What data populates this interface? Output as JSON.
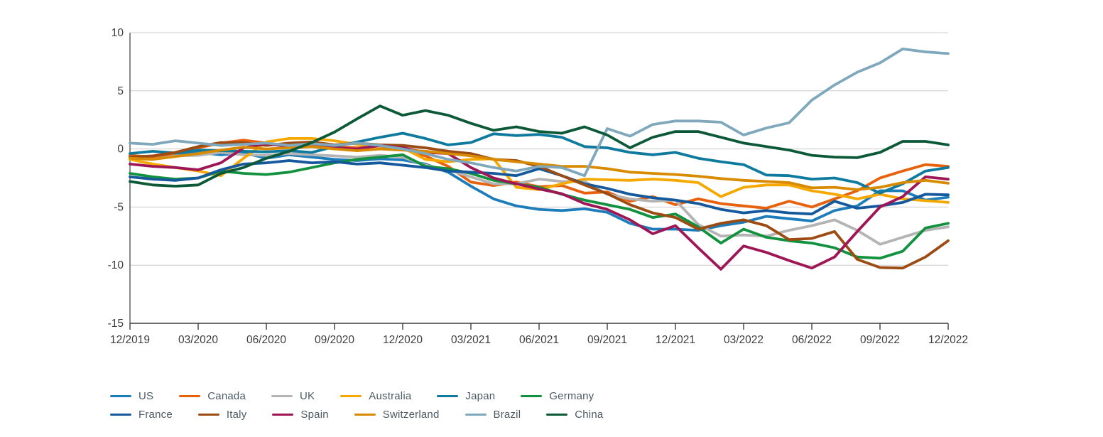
{
  "chart_data": {
    "type": "line",
    "title": "",
    "xlabel": "",
    "ylabel": "",
    "ylim": [
      -15,
      10
    ],
    "y_ticks": [
      "10",
      "5",
      "0",
      "-5",
      "-10",
      "-15"
    ],
    "y_tick_values": [
      10,
      5,
      0,
      -5,
      -10,
      -15
    ],
    "grid": "horizontal",
    "legend_position": "bottom-left",
    "x_tick_labels": [
      "12/2019",
      "03/2020",
      "06/2020",
      "09/2020",
      "12/2020",
      "03/2021",
      "06/2021",
      "09/2021",
      "12/2021",
      "03/2022",
      "06/2022",
      "09/2022",
      "12/2022"
    ],
    "months_per_tick": 3,
    "axis_color": "#3d3d3d",
    "gridline_color": "#cccccc",
    "series": [
      {
        "name": "US",
        "color": "#1d7cba",
        "values": [
          -0.6,
          -0.8,
          -0.5,
          -0.3,
          -0.5,
          -0.35,
          -0.8,
          -0.5,
          -0.7,
          -0.9,
          -1.0,
          -0.85,
          -0.95,
          -1.3,
          -2.0,
          -3.2,
          -4.3,
          -4.9,
          -5.2,
          -5.3,
          -5.15,
          -5.45,
          -6.4,
          -6.9,
          -6.9,
          -7.0,
          -6.6,
          -6.3,
          -5.8,
          -6.0,
          -6.2,
          -5.3,
          -4.9,
          -3.6,
          -3.6,
          -4.4,
          -4.15
        ]
      },
      {
        "name": "Canada",
        "color": "#e8610c",
        "values": [
          -0.55,
          -0.7,
          -0.35,
          0.1,
          0.5,
          0.75,
          0.5,
          0.3,
          0.5,
          0.2,
          0.1,
          0.25,
          0.0,
          -0.6,
          -1.5,
          -2.85,
          -3.15,
          -2.85,
          -3.25,
          -3.15,
          -3.8,
          -3.7,
          -4.5,
          -4.1,
          -4.8,
          -4.3,
          -4.7,
          -4.9,
          -5.1,
          -4.5,
          -5.0,
          -4.3,
          -3.6,
          -2.5,
          -1.9,
          -1.35,
          -1.5
        ]
      },
      {
        "name": "UK",
        "color": "#b4b4b4",
        "values": [
          -0.75,
          -0.9,
          -0.6,
          -0.55,
          -0.3,
          -0.5,
          -0.55,
          -0.4,
          -0.5,
          -0.6,
          -0.7,
          -0.55,
          -0.7,
          -1.4,
          -1.8,
          -2.4,
          -3.0,
          -3.0,
          -2.6,
          -2.8,
          -2.8,
          -3.9,
          -4.3,
          -4.5,
          -4.4,
          -6.5,
          -7.5,
          -7.4,
          -7.5,
          -7.0,
          -6.6,
          -6.1,
          -7.0,
          -8.2,
          -7.6,
          -7.0,
          -6.7
        ]
      },
      {
        "name": "Australia",
        "color": "#f5a800",
        "values": [
          -0.9,
          -1.3,
          -1.6,
          -1.9,
          -2.3,
          -0.8,
          0.6,
          0.9,
          0.9,
          0.7,
          0.4,
          0.3,
          0.1,
          -0.9,
          -1.1,
          -0.9,
          -0.85,
          -3.3,
          -3.5,
          -3.0,
          -2.6,
          -2.65,
          -2.7,
          -2.6,
          -2.7,
          -2.9,
          -4.1,
          -3.3,
          -3.1,
          -3.1,
          -3.6,
          -3.9,
          -4.3,
          -3.9,
          -4.3,
          -4.45,
          -4.6
        ]
      },
      {
        "name": "Japan",
        "color": "#0e7a9e",
        "values": [
          -0.4,
          -0.2,
          -0.35,
          -0.1,
          -0.15,
          -0.2,
          -0.25,
          -0.15,
          -0.3,
          0.2,
          0.6,
          1.0,
          1.35,
          0.9,
          0.35,
          0.55,
          1.3,
          1.15,
          1.25,
          1.0,
          0.2,
          0.1,
          -0.3,
          -0.5,
          -0.3,
          -0.8,
          -1.1,
          -1.35,
          -2.25,
          -2.3,
          -2.6,
          -2.5,
          -2.9,
          -3.8,
          -3.0,
          -1.9,
          -1.6
        ]
      },
      {
        "name": "Germany",
        "color": "#12923e",
        "values": [
          -2.1,
          -2.4,
          -2.6,
          -2.5,
          -1.9,
          -2.1,
          -2.2,
          -2.0,
          -1.6,
          -1.2,
          -0.9,
          -0.7,
          -0.5,
          -1.5,
          -1.7,
          -2.1,
          -2.7,
          -3.0,
          -3.3,
          -3.9,
          -4.4,
          -4.8,
          -5.2,
          -5.9,
          -5.6,
          -6.7,
          -8.1,
          -6.9,
          -7.6,
          -7.9,
          -8.1,
          -8.5,
          -9.3,
          -9.4,
          -8.8,
          -6.8,
          -6.4
        ]
      },
      {
        "name": "France",
        "color": "#15599c",
        "values": [
          -2.4,
          -2.6,
          -2.7,
          -2.5,
          -1.8,
          -1.3,
          -1.2,
          -1.0,
          -1.2,
          -1.1,
          -1.3,
          -1.2,
          -1.4,
          -1.6,
          -1.9,
          -2.0,
          -2.1,
          -2.3,
          -1.7,
          -2.3,
          -3.0,
          -3.4,
          -3.9,
          -4.2,
          -4.4,
          -4.7,
          -5.2,
          -5.5,
          -5.3,
          -5.5,
          -5.6,
          -4.5,
          -5.1,
          -4.9,
          -4.6,
          -3.9,
          -3.95
        ]
      },
      {
        "name": "Italy",
        "color": "#9c4b12",
        "values": [
          -0.7,
          -0.6,
          -0.3,
          0.2,
          0.55,
          0.55,
          0.3,
          0.5,
          0.6,
          0.35,
          0.5,
          0.35,
          0.3,
          0.1,
          -0.2,
          -0.4,
          -0.9,
          -1.0,
          -1.5,
          -2.3,
          -3.1,
          -3.85,
          -4.8,
          -5.5,
          -5.9,
          -6.9,
          -6.4,
          -6.1,
          -6.6,
          -7.8,
          -7.7,
          -7.1,
          -9.5,
          -10.2,
          -10.25,
          -9.3,
          -7.9
        ]
      },
      {
        "name": "Spain",
        "color": "#9e1655",
        "values": [
          -1.3,
          -1.5,
          -1.6,
          -1.8,
          -1.2,
          0.1,
          0.45,
          0.2,
          0.3,
          0.1,
          0.0,
          0.3,
          0.1,
          -0.3,
          -0.4,
          -1.6,
          -2.5,
          -3.0,
          -3.45,
          -3.85,
          -4.7,
          -5.2,
          -6.1,
          -7.3,
          -6.6,
          -8.5,
          -10.35,
          -8.35,
          -8.9,
          -9.6,
          -10.25,
          -9.3,
          -7.1,
          -5.0,
          -4.1,
          -2.4,
          -2.6
        ]
      },
      {
        "name": "Switzerland",
        "color": "#d88b00",
        "values": [
          -0.8,
          -0.9,
          -0.65,
          -0.4,
          -0.1,
          0.15,
          0.0,
          0.1,
          0.2,
          0.0,
          -0.15,
          0.0,
          -0.1,
          -0.2,
          -0.4,
          -0.6,
          -0.9,
          -1.1,
          -1.3,
          -1.5,
          -1.5,
          -1.7,
          -2.0,
          -2.1,
          -2.2,
          -2.35,
          -2.55,
          -2.7,
          -2.8,
          -2.9,
          -3.35,
          -3.3,
          -3.5,
          -3.3,
          -2.9,
          -2.7,
          -2.95
        ]
      },
      {
        "name": "Brazil",
        "color": "#7fa8bd",
        "values": [
          0.5,
          0.4,
          0.7,
          0.5,
          0.3,
          0.4,
          0.5,
          0.3,
          0.45,
          0.3,
          0.5,
          0.3,
          0.0,
          -0.4,
          -0.9,
          -1.2,
          -1.6,
          -1.9,
          -1.5,
          -1.6,
          -2.3,
          1.75,
          1.1,
          2.1,
          2.4,
          2.4,
          2.3,
          1.2,
          1.8,
          2.25,
          4.2,
          5.5,
          6.6,
          7.4,
          8.6,
          8.35,
          8.2
        ]
      },
      {
        "name": "China",
        "color": "#0c5937",
        "values": [
          -2.8,
          -3.1,
          -3.2,
          -3.1,
          -2.1,
          -1.6,
          -0.8,
          -0.2,
          0.55,
          1.45,
          2.6,
          3.7,
          2.9,
          3.3,
          2.9,
          2.2,
          1.6,
          1.9,
          1.5,
          1.35,
          1.9,
          1.2,
          0.1,
          1.0,
          1.5,
          1.5,
          1.0,
          0.5,
          0.2,
          -0.1,
          -0.55,
          -0.7,
          -0.75,
          -0.3,
          0.65,
          0.65,
          0.35
        ]
      }
    ],
    "legend_rows": [
      [
        "US",
        "Canada",
        "UK",
        "Australia",
        "Japan",
        "Germany"
      ],
      [
        "France",
        "Italy",
        "Spain",
        "Switzerland",
        "Brazil",
        "China"
      ]
    ]
  }
}
